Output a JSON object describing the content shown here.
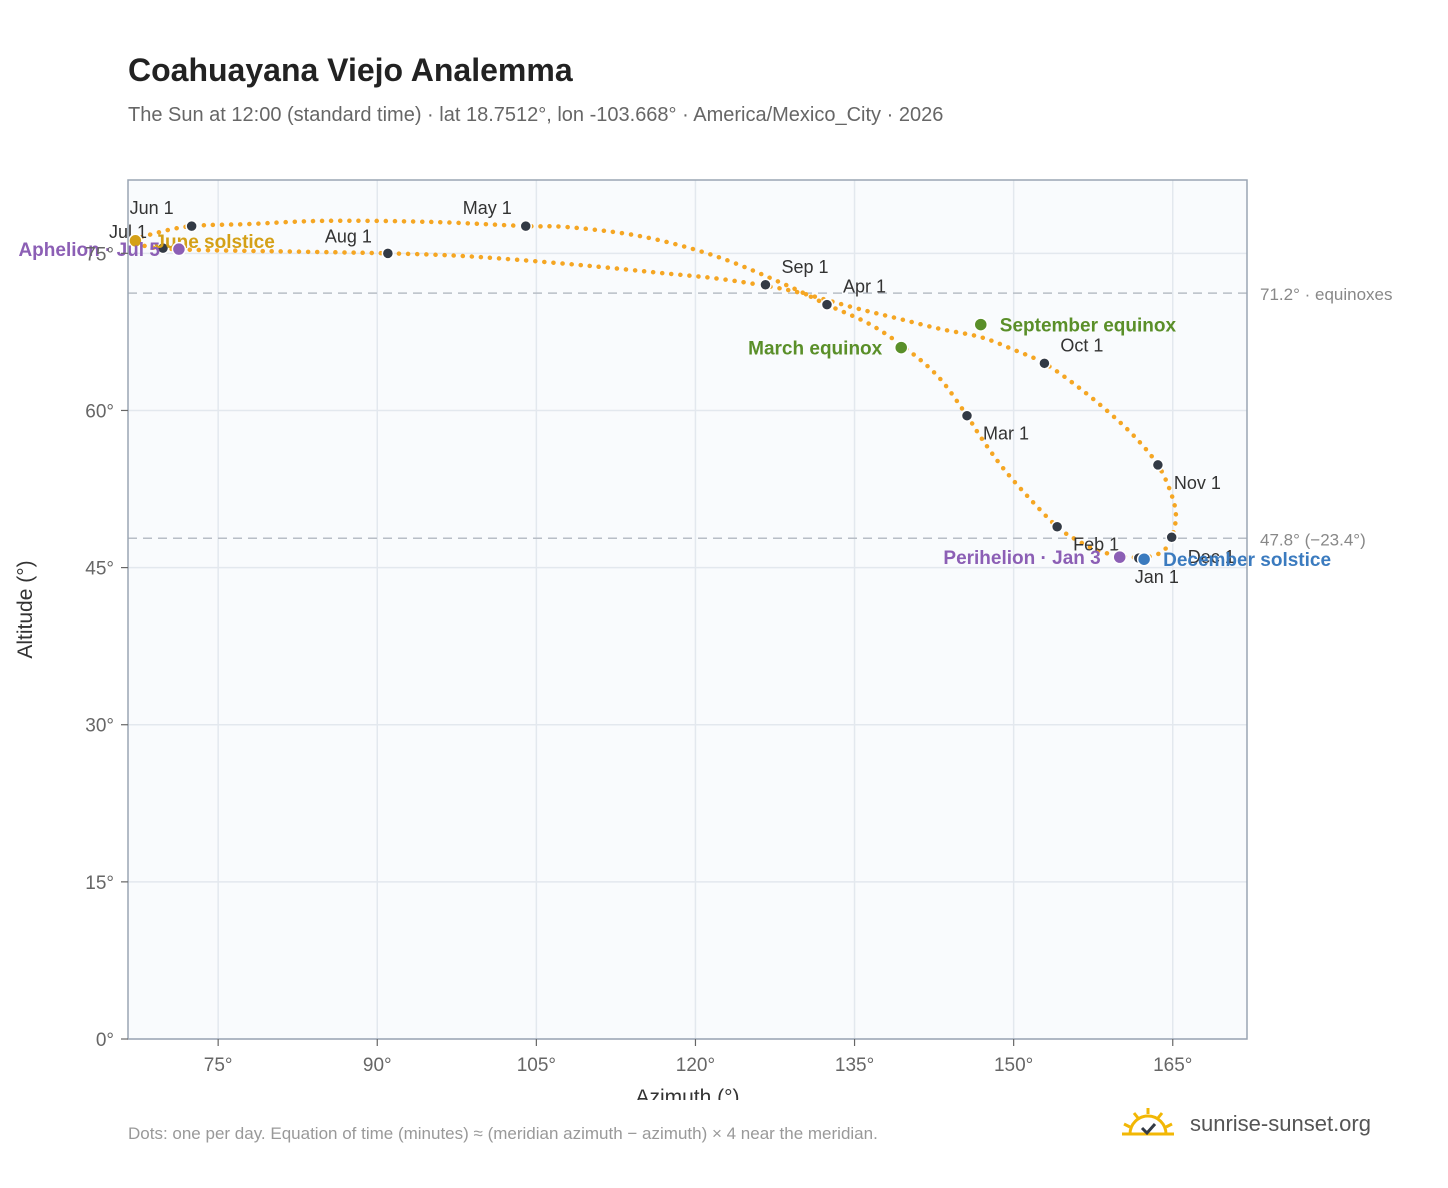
{
  "title": "Coahuayana Viejo Analemma",
  "subtitle": "The Sun at 12:00 (standard time) · lat 18.7512°, lon -103.668° · America/Mexico_City · 2026",
  "footnote": "Dots: one per day. Equation of time (minutes) ≈ (meridian azimuth − azimuth) × 4 near the meridian.",
  "brand": {
    "text": "sunrise-sunset.org",
    "icon": "sun-logo-icon"
  },
  "colors": {
    "curve": "#f5a623",
    "month_marker": "#333a45",
    "equinox": "#5a8f29",
    "june_solstice": "#d4a017",
    "december_solstice": "#3b7bbf",
    "apsis": "#8c5fb5",
    "reference_line": "#b8bec6",
    "plot_background": "#f9fbfd",
    "plot_border": "#9aa5b3",
    "grid": "#e3e8ee"
  },
  "chart_data": {
    "type": "scatter",
    "title": "Coahuayana Viejo Analemma",
    "xlabel": "Azimuth (°)",
    "ylabel": "Altitude (°)",
    "xlim": [
      66.5,
      172
    ],
    "ylim": [
      0,
      82
    ],
    "x_ticks": [
      {
        "value": 75,
        "label": "75°"
      },
      {
        "value": 90,
        "label": "90°"
      },
      {
        "value": 105,
        "label": "105°"
      },
      {
        "value": 120,
        "label": "120°"
      },
      {
        "value": 135,
        "label": "135°"
      },
      {
        "value": 150,
        "label": "150°"
      },
      {
        "value": 165,
        "label": "165°"
      }
    ],
    "y_ticks": [
      {
        "value": 0,
        "label": "0°"
      },
      {
        "value": 15,
        "label": "15°"
      },
      {
        "value": 30,
        "label": "30°"
      },
      {
        "value": 45,
        "label": "45°"
      },
      {
        "value": 60,
        "label": "60°"
      },
      {
        "value": 75,
        "label": "75°"
      }
    ],
    "grid": true,
    "analemma_path": [
      [
        162.2,
        45.9
      ],
      [
        160.2,
        46.1
      ],
      [
        158.0,
        46.6
      ],
      [
        156.0,
        47.6
      ],
      [
        154.1,
        48.9
      ],
      [
        151.5,
        51.6
      ],
      [
        149.0,
        54.5
      ],
      [
        147.0,
        57.3
      ],
      [
        145.6,
        59.5
      ],
      [
        143.0,
        63.1
      ],
      [
        140.0,
        65.8
      ],
      [
        136.5,
        68.2
      ],
      [
        132.4,
        70.1
      ],
      [
        128.5,
        72.0
      ],
      [
        122.0,
        74.7
      ],
      [
        115.0,
        76.6
      ],
      [
        108.0,
        77.5
      ],
      [
        104.0,
        77.6
      ],
      [
        95.0,
        78.0
      ],
      [
        85.0,
        78.1
      ],
      [
        78.0,
        77.8
      ],
      [
        72.5,
        77.6
      ],
      [
        69.0,
        76.9
      ],
      [
        67.2,
        76.2
      ],
      [
        68.5,
        75.6
      ],
      [
        71.0,
        75.4
      ],
      [
        74.0,
        75.3
      ],
      [
        80.0,
        75.2
      ],
      [
        86.0,
        75.1
      ],
      [
        91.0,
        75.0
      ],
      [
        97.0,
        74.8
      ],
      [
        103.0,
        74.4
      ],
      [
        110.0,
        73.8
      ],
      [
        117.0,
        73.1
      ],
      [
        122.0,
        72.6
      ],
      [
        126.6,
        71.9
      ],
      [
        130.0,
        71.2
      ],
      [
        135.0,
        69.8
      ],
      [
        139.0,
        68.8
      ],
      [
        143.0,
        67.8
      ],
      [
        146.9,
        67.0
      ],
      [
        150.0,
        65.8
      ],
      [
        152.9,
        64.5
      ],
      [
        156.0,
        62.3
      ],
      [
        159.0,
        59.8
      ],
      [
        161.5,
        57.4
      ],
      [
        163.6,
        54.8
      ],
      [
        164.8,
        52.2
      ],
      [
        165.3,
        50.0
      ],
      [
        164.9,
        47.9
      ],
      [
        164.0,
        46.5
      ],
      [
        162.2,
        45.9
      ]
    ],
    "month_markers": [
      {
        "label": "Jan 1",
        "azimuth": 161.8,
        "altitude": 45.9
      },
      {
        "label": "Feb 1",
        "azimuth": 154.1,
        "altitude": 48.9
      },
      {
        "label": "Mar 1",
        "azimuth": 145.6,
        "altitude": 59.5
      },
      {
        "label": "Apr 1",
        "azimuth": 132.4,
        "altitude": 70.1
      },
      {
        "label": "May 1",
        "azimuth": 104.0,
        "altitude": 77.6
      },
      {
        "label": "Jun 1",
        "azimuth": 72.5,
        "altitude": 77.6
      },
      {
        "label": "Jul 1",
        "azimuth": 69.8,
        "altitude": 75.5
      },
      {
        "label": "Aug 1",
        "azimuth": 91.0,
        "altitude": 75.0
      },
      {
        "label": "Sep 1",
        "azimuth": 126.6,
        "altitude": 72.0
      },
      {
        "label": "Oct 1",
        "azimuth": 152.9,
        "altitude": 64.5
      },
      {
        "label": "Nov 1",
        "azimuth": 163.6,
        "altitude": 54.8
      },
      {
        "label": "Dec 1",
        "azimuth": 164.9,
        "altitude": 47.9
      }
    ],
    "events": [
      {
        "label": "March equinox",
        "azimuth": 139.4,
        "altitude": 66.0,
        "color_key": "equinox",
        "label_side": "left"
      },
      {
        "label": "September equinox",
        "azimuth": 146.9,
        "altitude": 68.2,
        "color_key": "equinox",
        "label_side": "right"
      },
      {
        "label": "June solstice",
        "azimuth": 67.2,
        "altitude": 76.2,
        "color_key": "june_solstice",
        "label_side": "right"
      },
      {
        "label": "December solstice",
        "azimuth": 162.3,
        "altitude": 45.8,
        "color_key": "december_solstice",
        "label_side": "right"
      },
      {
        "label": "Perihelion · Jan 3",
        "azimuth": 160.0,
        "altitude": 46.0,
        "color_key": "apsis",
        "label_side": "left"
      },
      {
        "label": "Aphelion · Jul 5",
        "azimuth": 71.3,
        "altitude": 75.4,
        "color_key": "apsis",
        "label_side": "left"
      }
    ],
    "reference_lines": [
      {
        "altitude": 71.2,
        "label": "71.2° · equinoxes"
      },
      {
        "altitude": 47.8,
        "label": "47.8° (−23.4°)"
      }
    ]
  }
}
